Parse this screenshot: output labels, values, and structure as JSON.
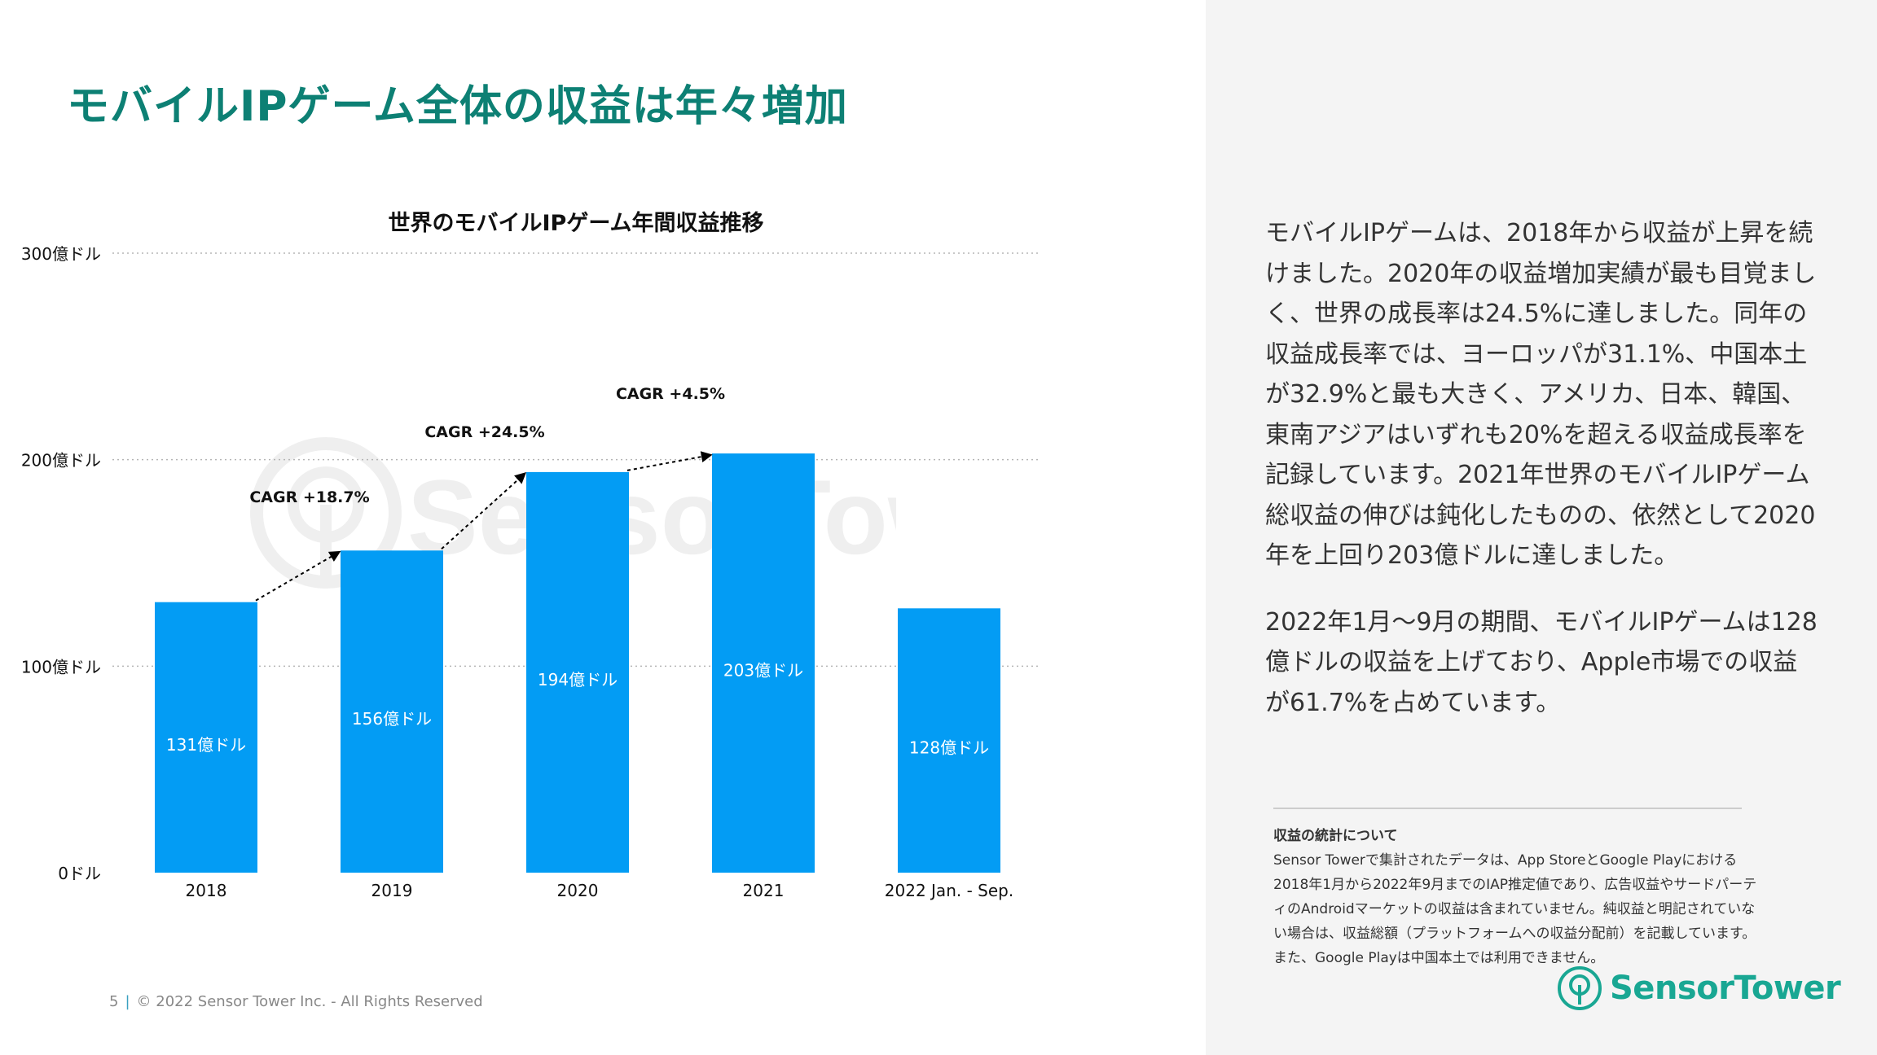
{
  "page": {
    "title": "モバイルIPゲーム全体の収益は年々増加"
  },
  "chart_data": {
    "type": "bar",
    "title": "世界のモバイルIPゲーム年間収益推移",
    "categories": [
      "2018",
      "2019",
      "2020",
      "2021",
      "2022 Jan. - Sep."
    ],
    "values": [
      131,
      156,
      194,
      203,
      128
    ],
    "value_labels": [
      "131億ドル",
      "156億ドル",
      "194億ドル",
      "203億ドル",
      "128億ドル"
    ],
    "ylim": [
      0,
      300
    ],
    "yticks": [
      {
        "value": 0,
        "label": "0ドル"
      },
      {
        "value": 100,
        "label": "100億ドル"
      },
      {
        "value": 200,
        "label": "200億ドル"
      },
      {
        "value": 300,
        "label": "300億ドル"
      }
    ],
    "grid": true,
    "bar_color": "#039cf4",
    "annotations": [
      {
        "from": "2018",
        "to": "2019",
        "label": "CAGR +18.7%"
      },
      {
        "from": "2019",
        "to": "2020",
        "label": "CAGR +24.5%"
      },
      {
        "from": "2020",
        "to": "2021",
        "label": "CAGR +4.5%"
      }
    ]
  },
  "description": {
    "paragraphs": [
      "モバイルIPゲームは、2018年から収益が上昇を続けました。2020年の収益増加実績が最も目覚ましく、世界の成長率は24.5%に達しました。同年の収益成長率では、ヨーロッパが31.1%、中国本土が32.9%と最も大きく、アメリカ、日本、韓国、東南アジアはいずれも20%を超える収益成長率を記録しています。2021年世界のモバイルIPゲーム総収益の伸びは鈍化したものの、依然として2020年を上回り203億ドルに達しました。",
      "2022年1月〜9月の期間、モバイルIPゲームは128億ドルの収益を上げており、Apple市場での収益が61.7%を占めています。"
    ]
  },
  "notes": {
    "title": "収益の統計について",
    "body": "Sensor Towerで集計されたデータは、App StoreとGoogle Playにおける2018年1月から2022年9月までのIAP推定値であり、広告収益やサードパーティのAndroidマーケットの収益は含まれていません。純収益と明記されていない場合は、収益総額（プラットフォームへの収益分配前）を記載しています。また、Google Playは中国本土では利用できません。"
  },
  "logo": {
    "text": "SensorTower",
    "icon": "sensor-tower-logo-icon",
    "color": "#19a793"
  },
  "footer": {
    "page_number": "5",
    "separator": "|",
    "copyright": "© 2022 Sensor Tower Inc. - All Rights Reserved"
  },
  "colors": {
    "title": "#0d8074",
    "background_right": "#f4f4f4"
  }
}
